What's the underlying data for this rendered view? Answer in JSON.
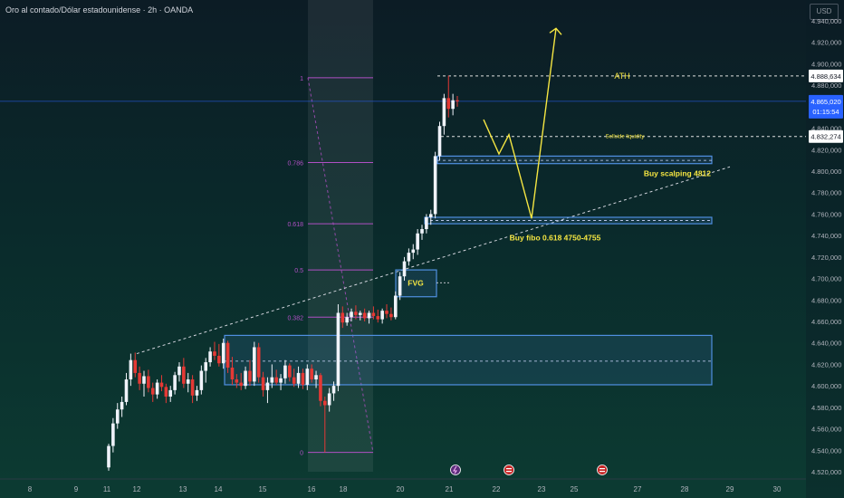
{
  "title": "Oro al contado/Dólar estadounidense · 2h · OANDA",
  "currency": "USD",
  "colors": {
    "up": "#f0f3fa",
    "down": "#e53935",
    "annot": "#f5e642",
    "zone_edge": "#4f8fe0",
    "fib": "#b04fc4",
    "trend": "#d1d4dc"
  },
  "chart_data": {
    "type": "candlestick",
    "y_axis": {
      "min": 4520,
      "max": 4940,
      "ticks": [
        "4.520,000",
        "4.540,000",
        "4.560,000",
        "4.580,000",
        "4.600,000",
        "4.620,000",
        "4.640,000",
        "4.660,000",
        "4.680,000",
        "4.700,000",
        "4.720,000",
        "4.740,000",
        "4.760,000",
        "4.780,000",
        "4.800,000",
        "4.820,000",
        "4.840,000",
        "4.860,000",
        "4.880,000",
        "4.900,000",
        "4.920,000",
        "4.940,000"
      ]
    },
    "x_axis": {
      "labels": [
        "8",
        "9",
        "11",
        "12",
        "13",
        "14",
        "15",
        "16",
        "18",
        "20",
        "21",
        "22",
        "23",
        "25",
        "27",
        "28",
        "29",
        "30"
      ]
    },
    "price_labels": [
      {
        "value": 4888.634,
        "text": "4.888,634",
        "kind": "ath"
      },
      {
        "value": 4865.02,
        "text": "4.865,020",
        "sub": "01:15:54",
        "kind": "last"
      },
      {
        "value": 4832.274,
        "text": "4.832,274",
        "kind": "liq"
      }
    ],
    "fib_levels": [
      {
        "label": "1",
        "value": 4887
      },
      {
        "label": "0.786",
        "value": 4808
      },
      {
        "label": "0.618",
        "value": 4751
      },
      {
        "label": "0.5",
        "value": 4708
      },
      {
        "label": "0.382",
        "value": 4664
      },
      {
        "label": "0",
        "value": 4538
      }
    ],
    "zones": [
      {
        "label": "Buy scalping 4812",
        "top": 4814,
        "bottom": 4807,
        "mid": 4810
      },
      {
        "label": "Buy fibo 0.618 4750-4755",
        "top": 4757,
        "bottom": 4751,
        "mid": 4754
      },
      {
        "label": "FVG",
        "top": 4708,
        "bottom": 4683
      },
      {
        "label": "",
        "top": 4647,
        "bottom": 4601,
        "mid": 4623
      }
    ],
    "annotations": [
      {
        "text": "ATH",
        "value": 4888.634
      },
      {
        "text": "Sellside liquidity",
        "value": 4832.274
      }
    ],
    "projection": [
      {
        "date": "21",
        "price": 4848
      },
      {
        "date": "22",
        "price": 4816
      },
      {
        "date": "22",
        "price": 4834
      },
      {
        "date": "23",
        "price": 4756
      },
      {
        "date": "25",
        "price": 4933
      }
    ],
    "trendline": [
      {
        "date": "12",
        "price": 4630
      },
      {
        "date": "29",
        "price": 4804
      }
    ],
    "event_markers": [
      "lightning",
      "flag",
      "flag"
    ],
    "candles": [
      {
        "o": 4524,
        "h": 4546,
        "l": 4521,
        "c": 4544
      },
      {
        "o": 4544,
        "h": 4570,
        "l": 4538,
        "c": 4565
      },
      {
        "o": 4565,
        "h": 4584,
        "l": 4560,
        "c": 4578
      },
      {
        "o": 4578,
        "h": 4590,
        "l": 4571,
        "c": 4585
      },
      {
        "o": 4585,
        "h": 4612,
        "l": 4582,
        "c": 4606
      },
      {
        "o": 4606,
        "h": 4630,
        "l": 4600,
        "c": 4624
      },
      {
        "o": 4624,
        "h": 4631,
        "l": 4608,
        "c": 4612
      },
      {
        "o": 4612,
        "h": 4618,
        "l": 4596,
        "c": 4602
      },
      {
        "o": 4602,
        "h": 4614,
        "l": 4590,
        "c": 4609
      },
      {
        "o": 4609,
        "h": 4615,
        "l": 4594,
        "c": 4598
      },
      {
        "o": 4598,
        "h": 4603,
        "l": 4585,
        "c": 4592
      },
      {
        "o": 4592,
        "h": 4606,
        "l": 4588,
        "c": 4603
      },
      {
        "o": 4603,
        "h": 4610,
        "l": 4595,
        "c": 4599
      },
      {
        "o": 4599,
        "h": 4602,
        "l": 4584,
        "c": 4590
      },
      {
        "o": 4590,
        "h": 4600,
        "l": 4585,
        "c": 4596
      },
      {
        "o": 4596,
        "h": 4613,
        "l": 4592,
        "c": 4610
      },
      {
        "o": 4610,
        "h": 4622,
        "l": 4604,
        "c": 4618
      },
      {
        "o": 4618,
        "h": 4626,
        "l": 4598,
        "c": 4602
      },
      {
        "o": 4602,
        "h": 4612,
        "l": 4594,
        "c": 4606
      },
      {
        "o": 4606,
        "h": 4610,
        "l": 4584,
        "c": 4591
      },
      {
        "o": 4591,
        "h": 4600,
        "l": 4586,
        "c": 4596
      },
      {
        "o": 4596,
        "h": 4619,
        "l": 4592,
        "c": 4614
      },
      {
        "o": 4614,
        "h": 4626,
        "l": 4603,
        "c": 4622
      },
      {
        "o": 4622,
        "h": 4636,
        "l": 4618,
        "c": 4632
      },
      {
        "o": 4632,
        "h": 4641,
        "l": 4624,
        "c": 4628
      },
      {
        "o": 4628,
        "h": 4639,
        "l": 4618,
        "c": 4621
      },
      {
        "o": 4621,
        "h": 4644,
        "l": 4616,
        "c": 4640
      },
      {
        "o": 4640,
        "h": 4642,
        "l": 4612,
        "c": 4617
      },
      {
        "o": 4617,
        "h": 4627,
        "l": 4601,
        "c": 4606
      },
      {
        "o": 4606,
        "h": 4611,
        "l": 4598,
        "c": 4603
      },
      {
        "o": 4603,
        "h": 4612,
        "l": 4596,
        "c": 4600
      },
      {
        "o": 4600,
        "h": 4618,
        "l": 4597,
        "c": 4614
      },
      {
        "o": 4614,
        "h": 4624,
        "l": 4600,
        "c": 4604
      },
      {
        "o": 4604,
        "h": 4641,
        "l": 4600,
        "c": 4636
      },
      {
        "o": 4636,
        "h": 4640,
        "l": 4603,
        "c": 4608
      },
      {
        "o": 4608,
        "h": 4613,
        "l": 4590,
        "c": 4596
      },
      {
        "o": 4596,
        "h": 4608,
        "l": 4584,
        "c": 4603
      },
      {
        "o": 4603,
        "h": 4620,
        "l": 4598,
        "c": 4608
      },
      {
        "o": 4608,
        "h": 4615,
        "l": 4601,
        "c": 4603
      },
      {
        "o": 4603,
        "h": 4611,
        "l": 4596,
        "c": 4607
      },
      {
        "o": 4607,
        "h": 4624,
        "l": 4602,
        "c": 4619
      },
      {
        "o": 4619,
        "h": 4621,
        "l": 4604,
        "c": 4608
      },
      {
        "o": 4608,
        "h": 4616,
        "l": 4599,
        "c": 4602
      },
      {
        "o": 4602,
        "h": 4618,
        "l": 4598,
        "c": 4612
      },
      {
        "o": 4612,
        "h": 4616,
        "l": 4597,
        "c": 4601
      },
      {
        "o": 4601,
        "h": 4620,
        "l": 4596,
        "c": 4616
      },
      {
        "o": 4616,
        "h": 4620,
        "l": 4603,
        "c": 4606
      },
      {
        "o": 4606,
        "h": 4614,
        "l": 4598,
        "c": 4610
      },
      {
        "o": 4610,
        "h": 4612,
        "l": 4581,
        "c": 4586
      },
      {
        "o": 4586,
        "h": 4590,
        "l": 4538,
        "c": 4582
      },
      {
        "o": 4582,
        "h": 4598,
        "l": 4576,
        "c": 4593
      },
      {
        "o": 4593,
        "h": 4604,
        "l": 4586,
        "c": 4600
      },
      {
        "o": 4600,
        "h": 4676,
        "l": 4595,
        "c": 4668
      },
      {
        "o": 4668,
        "h": 4674,
        "l": 4654,
        "c": 4659
      },
      {
        "o": 4659,
        "h": 4668,
        "l": 4656,
        "c": 4664
      },
      {
        "o": 4664,
        "h": 4672,
        "l": 4660,
        "c": 4669
      },
      {
        "o": 4669,
        "h": 4675,
        "l": 4662,
        "c": 4666
      },
      {
        "o": 4666,
        "h": 4670,
        "l": 4661,
        "c": 4668
      },
      {
        "o": 4668,
        "h": 4672,
        "l": 4660,
        "c": 4663
      },
      {
        "o": 4663,
        "h": 4670,
        "l": 4658,
        "c": 4668
      },
      {
        "o": 4668,
        "h": 4674,
        "l": 4662,
        "c": 4665
      },
      {
        "o": 4665,
        "h": 4671,
        "l": 4659,
        "c": 4662
      },
      {
        "o": 4662,
        "h": 4672,
        "l": 4658,
        "c": 4670
      },
      {
        "o": 4670,
        "h": 4676,
        "l": 4663,
        "c": 4667
      },
      {
        "o": 4667,
        "h": 4673,
        "l": 4661,
        "c": 4664
      },
      {
        "o": 4664,
        "h": 4688,
        "l": 4662,
        "c": 4684
      },
      {
        "o": 4684,
        "h": 4706,
        "l": 4680,
        "c": 4702
      },
      {
        "o": 4702,
        "h": 4720,
        "l": 4698,
        "c": 4716
      },
      {
        "o": 4716,
        "h": 4728,
        "l": 4712,
        "c": 4724
      },
      {
        "o": 4724,
        "h": 4732,
        "l": 4718,
        "c": 4727
      },
      {
        "o": 4727,
        "h": 4746,
        "l": 4722,
        "c": 4742
      },
      {
        "o": 4742,
        "h": 4750,
        "l": 4736,
        "c": 4746
      },
      {
        "o": 4746,
        "h": 4760,
        "l": 4742,
        "c": 4757
      },
      {
        "o": 4757,
        "h": 4764,
        "l": 4750,
        "c": 4760
      },
      {
        "o": 4760,
        "h": 4818,
        "l": 4756,
        "c": 4814
      },
      {
        "o": 4814,
        "h": 4846,
        "l": 4810,
        "c": 4842
      },
      {
        "o": 4842,
        "h": 4872,
        "l": 4834,
        "c": 4868
      },
      {
        "o": 4868,
        "h": 4889,
        "l": 4850,
        "c": 4858
      },
      {
        "o": 4858,
        "h": 4872,
        "l": 4852,
        "c": 4866
      },
      {
        "o": 4866,
        "h": 4870,
        "l": 4860,
        "c": 4865
      }
    ]
  }
}
